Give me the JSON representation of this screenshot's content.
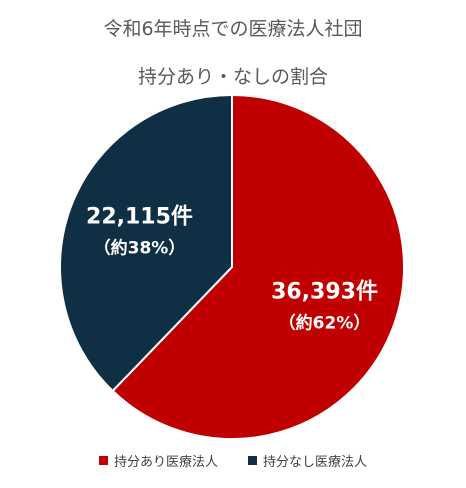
{
  "chart_data": {
    "type": "pie",
    "title": "令和6年時点での医療法人社団",
    "subtitle": "持分あり・なしの割合",
    "slices": [
      {
        "name": "持分あり医療法人",
        "value": 36393,
        "value_label": "36,393件",
        "percent_label": "（約62%）",
        "color": "#c00000"
      },
      {
        "name": "持分なし医療法人",
        "value": 22115,
        "value_label": "22,115件",
        "percent_label": "（約38%）",
        "color": "#0e2f44"
      }
    ],
    "legend_position": "bottom"
  }
}
